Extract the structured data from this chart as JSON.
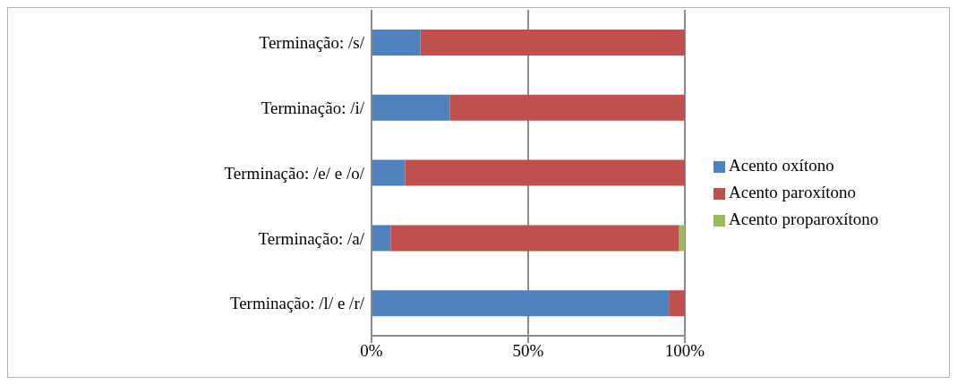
{
  "chart_data": {
    "type": "bar",
    "orientation": "horizontal",
    "stacked": true,
    "categories": [
      "Terminação: /s/",
      "Terminação: /i/",
      "Terminação: /e/ e /o/",
      "Terminação: /a/",
      "Terminação: /l/ e /r/"
    ],
    "series": [
      {
        "name": "Acento oxítono",
        "color": "#4f81bd",
        "values": [
          15.6,
          25,
          10.7,
          6.1,
          94.9
        ]
      },
      {
        "name": "Acento paroxítono",
        "color": "#c0504d",
        "values": [
          84.4,
          75,
          89.3,
          92.1,
          5.1
        ]
      },
      {
        "name": "Acento proparoxítono",
        "color": "#9bbb59",
        "values": [
          0,
          0,
          0,
          1.8,
          0
        ]
      }
    ],
    "xlim": [
      0,
      100
    ],
    "xticks": [
      {
        "value": 0,
        "label": "0%"
      },
      {
        "value": 50,
        "label": "50%"
      },
      {
        "value": 100,
        "label": "100%"
      }
    ],
    "grid": "x",
    "legend": "right"
  }
}
